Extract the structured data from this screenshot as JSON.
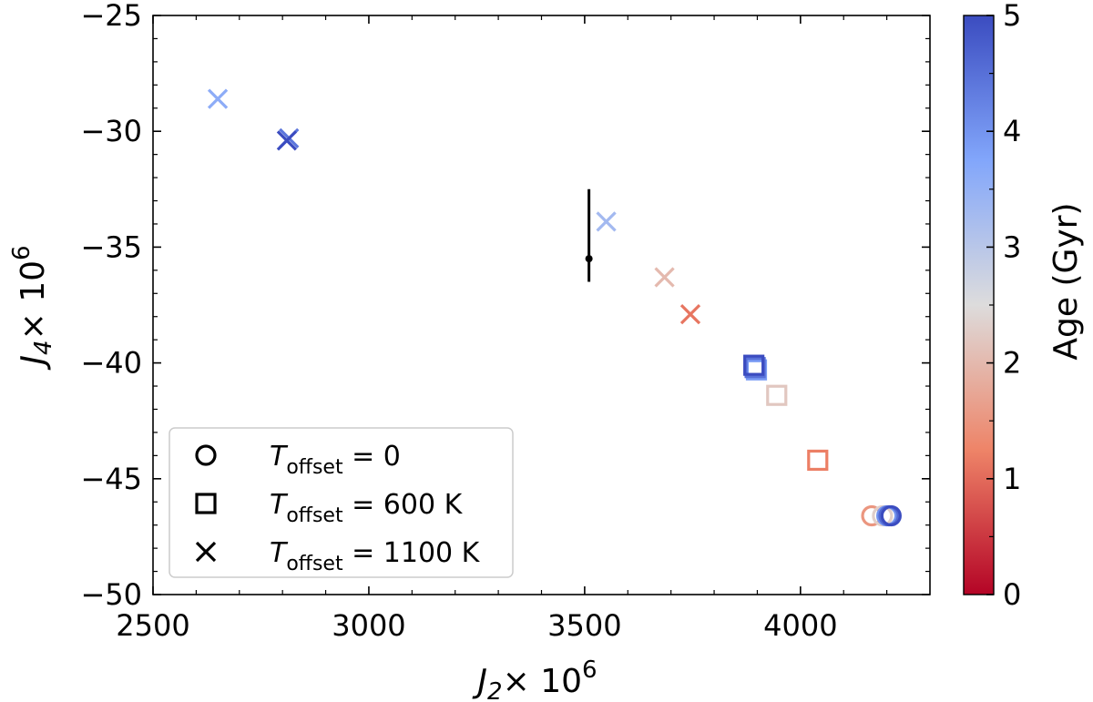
{
  "chart_data": {
    "type": "scatter",
    "xlabel": {
      "var": "J",
      "sub": "2",
      "times": "× 10",
      "exp": "6"
    },
    "ylabel": {
      "var": "J",
      "sub": "4",
      "times": "× 10",
      "exp": "6"
    },
    "xlim": [
      2500,
      4300
    ],
    "ylim": [
      -50,
      -25
    ],
    "xticks": [
      2500,
      3000,
      3500,
      4000
    ],
    "yticks": [
      -25,
      -30,
      -35,
      -40,
      -45,
      -50
    ],
    "xtick_labels": [
      "2500",
      "3000",
      "3500",
      "4000"
    ],
    "ytick_labels": [
      "−25",
      "−30",
      "−35",
      "−40",
      "−45",
      "−50"
    ],
    "colorbar": {
      "label": "Age (Gyr)",
      "range": [
        0,
        5
      ],
      "ticks": [
        0,
        1,
        2,
        3,
        4,
        5
      ],
      "tick_labels": [
        "0",
        "1",
        "2",
        "3",
        "4",
        "5"
      ],
      "colormap": "coolwarm",
      "stops": [
        "#b40426",
        "#ee8468",
        "#dddcdc",
        "#82a6fb",
        "#3b4cc0"
      ]
    },
    "observation": {
      "x": 3510,
      "y": -35.5,
      "y_err_low": 1.0,
      "y_err_high": 3.0,
      "color": "#000000"
    },
    "series": [
      {
        "name": "T_offset = 0",
        "marker": "circle",
        "points": [
          {
            "x": 4165,
            "y": -46.6,
            "age": 1.5
          },
          {
            "x": 4190,
            "y": -46.6,
            "age": 2.3
          },
          {
            "x": 4200,
            "y": -46.6,
            "age": 4.0
          },
          {
            "x": 4205,
            "y": -46.6,
            "age": 4.6
          },
          {
            "x": 4210,
            "y": -46.6,
            "age": 5.0
          }
        ]
      },
      {
        "name": "T_offset = 600 K",
        "marker": "square",
        "points": [
          {
            "x": 4040,
            "y": -44.2,
            "age": 1.2
          },
          {
            "x": 3945,
            "y": -41.4,
            "age": 2.2
          },
          {
            "x": 3898,
            "y": -40.3,
            "age": 3.9
          },
          {
            "x": 3895,
            "y": -40.2,
            "age": 4.5
          },
          {
            "x": 3892,
            "y": -40.1,
            "age": 5.0
          }
        ]
      },
      {
        "name": "T_offset = 1100 K",
        "marker": "x",
        "points": [
          {
            "x": 3745,
            "y": -37.9,
            "age": 1.1
          },
          {
            "x": 3685,
            "y": -36.3,
            "age": 2.0
          },
          {
            "x": 3550,
            "y": -33.9,
            "age": 3.3
          },
          {
            "x": 2650,
            "y": -28.6,
            "age": 3.6
          },
          {
            "x": 2815,
            "y": -30.3,
            "age": 4.4
          },
          {
            "x": 2810,
            "y": -30.4,
            "age": 5.0
          }
        ]
      }
    ],
    "legend": {
      "position": "lower-left",
      "entries": [
        {
          "marker": "circle",
          "var": "T",
          "sub": "offset",
          "rest": " = 0"
        },
        {
          "marker": "square",
          "var": "T",
          "sub": "offset",
          "rest": " = 600 K"
        },
        {
          "marker": "x",
          "var": "T",
          "sub": "offset",
          "rest": " = 1100 K"
        }
      ]
    }
  }
}
